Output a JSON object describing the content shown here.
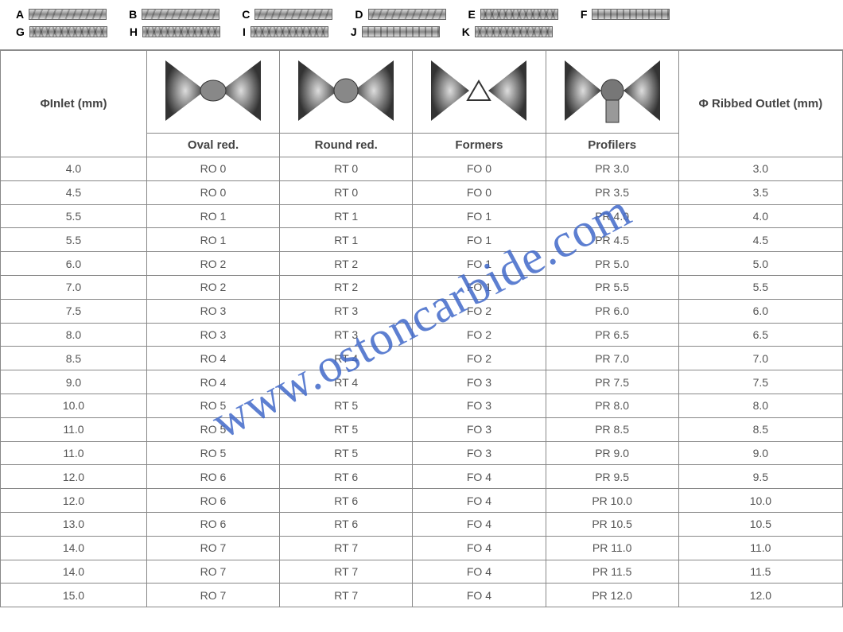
{
  "watermark": "www.ostoncarbide.com",
  "patterns": {
    "row1": [
      "A",
      "B",
      "C",
      "D",
      "E",
      "F"
    ],
    "row2": [
      "G",
      "H",
      "I",
      "J",
      "K"
    ]
  },
  "table": {
    "headers": {
      "inlet": "ΦInlet (mm)",
      "outlet": "Φ Ribbed Outlet (mm)",
      "sub": [
        "Oval red.",
        "Round red.",
        "Formers",
        "Profilers"
      ]
    },
    "columns": [
      "inlet",
      "oval",
      "round",
      "formers",
      "profilers",
      "outlet"
    ],
    "rows": [
      [
        "4.0",
        "RO 0",
        "RT 0",
        "FO 0",
        "PR 3.0",
        "3.0"
      ],
      [
        "4.5",
        "RO 0",
        "RT 0",
        "FO 0",
        "PR 3.5",
        "3.5"
      ],
      [
        "5.5",
        "RO 1",
        "RT 1",
        "FO 1",
        "PR 4.0",
        "4.0"
      ],
      [
        "5.5",
        "RO 1",
        "RT 1",
        "FO 1",
        "PR 4.5",
        "4.5"
      ],
      [
        "6.0",
        "RO 2",
        "RT 2",
        "FO 1",
        "PR 5.0",
        "5.0"
      ],
      [
        "7.0",
        "RO 2",
        "RT 2",
        "FO 1",
        "PR 5.5",
        "5.5"
      ],
      [
        "7.5",
        "RO 3",
        "RT 3",
        "FO 2",
        "PR 6.0",
        "6.0"
      ],
      [
        "8.0",
        "RO 3",
        "RT 3",
        "FO 2",
        "PR 6.5",
        "6.5"
      ],
      [
        "8.5",
        "RO 4",
        "RT 4",
        "FO 2",
        "PR 7.0",
        "7.0"
      ],
      [
        "9.0",
        "RO 4",
        "RT 4",
        "FO 3",
        "PR 7.5",
        "7.5"
      ],
      [
        "10.0",
        "RO 5",
        "RT 5",
        "FO 3",
        "PR 8.0",
        "8.0"
      ],
      [
        "11.0",
        "RO 5",
        "RT 5",
        "FO 3",
        "PR 8.5",
        "8.5"
      ],
      [
        "11.0",
        "RO 5",
        "RT 5",
        "FO 3",
        "PR 9.0",
        "9.0"
      ],
      [
        "12.0",
        "RO 6",
        "RT 6",
        "FO 4",
        "PR 9.5",
        "9.5"
      ],
      [
        "12.0",
        "RO 6",
        "RT 6",
        "FO 4",
        "PR 10.0",
        "10.0"
      ],
      [
        "13.0",
        "RO 6",
        "RT 6",
        "FO 4",
        "PR 10.5",
        "10.5"
      ],
      [
        "14.0",
        "RO 7",
        "RT 7",
        "FO 4",
        "PR 11.0",
        "11.0"
      ],
      [
        "14.0",
        "RO 7",
        "RT 7",
        "FO 4",
        "PR 11.5",
        "11.5"
      ],
      [
        "15.0",
        "RO 7",
        "RT 7",
        "FO 4",
        "PR 12.0",
        "12.0"
      ]
    ]
  },
  "style": {
    "watermark_color": "#4169c9",
    "border_color": "#888",
    "text_color": "#555",
    "header_color": "#444",
    "font_size_data": 14,
    "font_size_header": 15,
    "row_height": 29.8
  },
  "roll_shapes": [
    "oval",
    "round",
    "triangle",
    "profile"
  ]
}
